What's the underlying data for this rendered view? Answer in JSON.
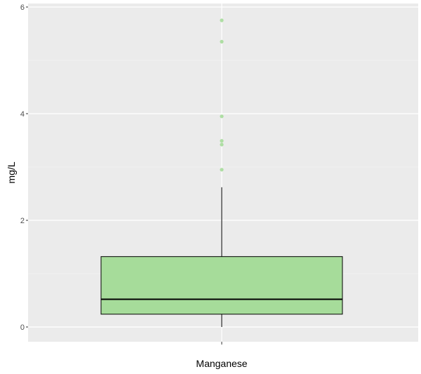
{
  "chart_data": {
    "type": "box",
    "categories": [
      "Manganese"
    ],
    "xlabel": "Manganese",
    "ylabel": "mg/L",
    "ylim": [
      -0.28,
      6.1
    ],
    "yticks": [
      0,
      2,
      4,
      6
    ],
    "ytick_labels": [
      "0",
      "2",
      "4",
      "6"
    ],
    "grid": true,
    "legend": "none",
    "series": [
      {
        "category": "Manganese",
        "whisker_low": 0.0,
        "q1": 0.24,
        "median": 0.52,
        "q3": 1.32,
        "whisker_high": 2.62,
        "outliers": [
          2.95,
          3.42,
          3.49,
          3.95,
          5.35,
          5.75
        ]
      }
    ],
    "colors": {
      "panel": "#ebebeb",
      "grid_major": "#ffffff",
      "grid_minor": "#f7f7f7",
      "box_fill": "#a6dc9a",
      "box_line": "#000000",
      "outlier": "#a6dc9a"
    }
  }
}
